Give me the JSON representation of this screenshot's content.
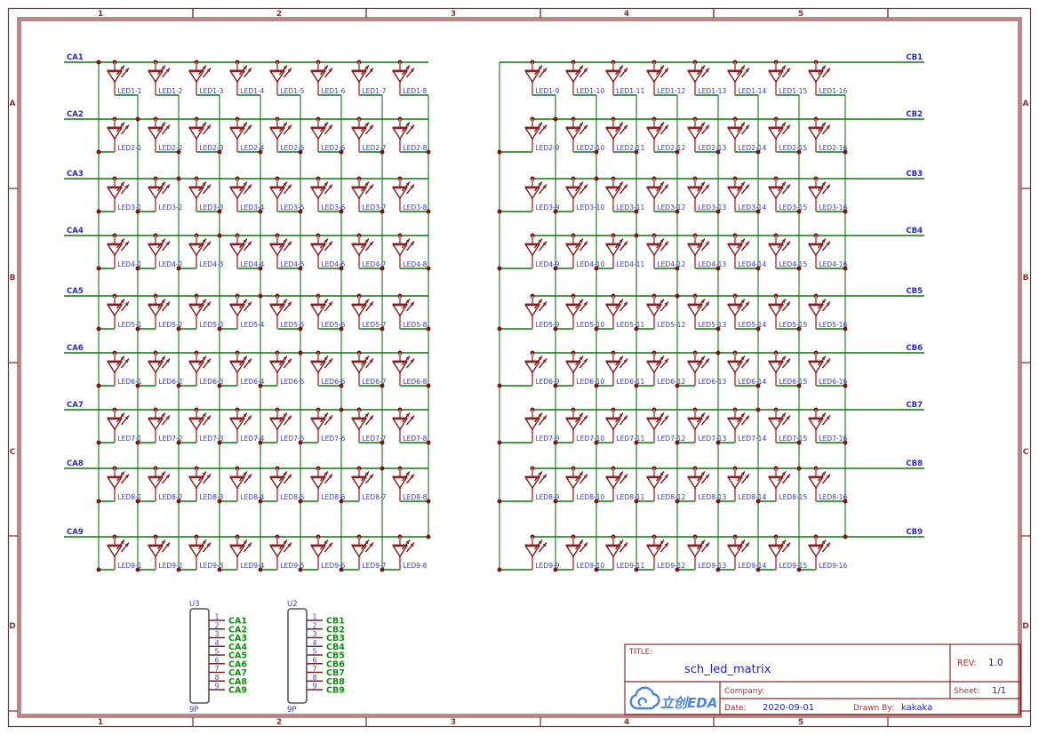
{
  "sheet": {
    "border": {
      "columns": [
        "1",
        "2",
        "3",
        "4",
        "5"
      ],
      "rows": [
        "A",
        "B",
        "C",
        "D"
      ]
    }
  },
  "matrix": {
    "left_row_nets": [
      "CA1",
      "CA2",
      "CA3",
      "CA4",
      "CA5",
      "CA6",
      "CA7",
      "CA8",
      "CA9"
    ],
    "right_row_nets": [
      "CB1",
      "CB2",
      "CB3",
      "CB4",
      "CB5",
      "CB6",
      "CB7",
      "CB8",
      "CB9"
    ],
    "led_labels": [
      [
        "LED1-1",
        "LED1-2",
        "LED1-3",
        "LED1-4",
        "LED1-5",
        "LED1-6",
        "LED1-7",
        "LED1-8",
        "LED1-9",
        "LED1-10",
        "LED1-11",
        "LED1-12",
        "LED1-13",
        "LED1-14",
        "LED1-15",
        "LED1-16"
      ],
      [
        "LED2-1",
        "LED2-2",
        "LED2-3",
        "LED2-4",
        "LED2-5",
        "LED2-6",
        "LED2-7",
        "LED2-8",
        "LED2-9",
        "LED2-10",
        "LED2-11",
        "LED2-12",
        "LED2-13",
        "LED2-14",
        "LED2-15",
        "LED2-16"
      ],
      [
        "LED3-1",
        "LED3-2",
        "LED3-3",
        "LED3-4",
        "LED3-5",
        "LED3-6",
        "LED3-7",
        "LED3-8",
        "LED3-9",
        "LED3-10",
        "LED3-11",
        "LED3-12",
        "LED3-13",
        "LED3-14",
        "LED3-15",
        "LED3-16"
      ],
      [
        "LED4-1",
        "LED4-2",
        "LED4-3",
        "LED4-4",
        "LED4-5",
        "LED4-6",
        "LED4-7",
        "LED4-8",
        "LED4-9",
        "LED4-10",
        "LED4-11",
        "LED4-12",
        "LED4-13",
        "LED4-14",
        "LED4-15",
        "LED4-16"
      ],
      [
        "LED5-1",
        "LED5-2",
        "LED5-3",
        "LED5-4",
        "LED5-5",
        "LED5-6",
        "LED5-7",
        "LED5-8",
        "LED5-9",
        "LED5-10",
        "LED5-11",
        "LED5-12",
        "LED5-13",
        "LED5-14",
        "LED5-15",
        "LED5-16"
      ],
      [
        "LED6-1",
        "LED6-2",
        "LED6-3",
        "LED6-4",
        "LED6-5",
        "LED6-6",
        "LED6-7",
        "LED6-8",
        "LED6-9",
        "LED6-10",
        "LED6-11",
        "LED6-12",
        "LED6-13",
        "LED6-14",
        "LED6-15",
        "LED6-16"
      ],
      [
        "LED7-1",
        "LED7-2",
        "LED7-3",
        "LED7-4",
        "LED7-5",
        "LED7-6",
        "LED7-7",
        "LED7-8",
        "LED7-9",
        "LED7-10",
        "LED7-11",
        "LED7-12",
        "LED7-13",
        "LED7-14",
        "LED7-15",
        "LED7-16"
      ],
      [
        "LED8-1",
        "LED8-2",
        "LED8-3",
        "LED8-4",
        "LED8-5",
        "LED8-6",
        "LED8-7",
        "LED8-8",
        "LED8-9",
        "LED8-10",
        "LED8-11",
        "LED8-12",
        "LED8-13",
        "LED8-14",
        "LED8-15",
        "LED8-16"
      ],
      [
        "LED9-1",
        "LED9-2",
        "LED9-3",
        "LED9-4",
        "LED9-5",
        "LED9-6",
        "LED9-7",
        "LED9-8",
        "LED9-9",
        "LED9-10",
        "LED9-11",
        "LED9-12",
        "LED9-13",
        "LED9-14",
        "LED9-15",
        "LED9-16"
      ]
    ]
  },
  "connectors": [
    {
      "ref": "U3",
      "type_label": "9P",
      "pins": [
        {
          "num": "1",
          "net": "CA1"
        },
        {
          "num": "2",
          "net": "CA2"
        },
        {
          "num": "3",
          "net": "CA3"
        },
        {
          "num": "4",
          "net": "CA4"
        },
        {
          "num": "5",
          "net": "CA5"
        },
        {
          "num": "6",
          "net": "CA6"
        },
        {
          "num": "7",
          "net": "CA7"
        },
        {
          "num": "8",
          "net": "CA8"
        },
        {
          "num": "9",
          "net": "CA9"
        }
      ]
    },
    {
      "ref": "U2",
      "type_label": "9P",
      "pins": [
        {
          "num": "1",
          "net": "CB1"
        },
        {
          "num": "2",
          "net": "CB2"
        },
        {
          "num": "3",
          "net": "CB3"
        },
        {
          "num": "4",
          "net": "CB4"
        },
        {
          "num": "5",
          "net": "CB5"
        },
        {
          "num": "6",
          "net": "CB6"
        },
        {
          "num": "7",
          "net": "CB7"
        },
        {
          "num": "8",
          "net": "CB8"
        },
        {
          "num": "9",
          "net": "CB9"
        }
      ]
    }
  ],
  "title_block": {
    "title_label": "TITLE:",
    "title": "sch_led_matrix",
    "rev_label": "REV:",
    "rev": "1.0",
    "company_label": "Company:",
    "company": "",
    "sheet_label": "Sheet:",
    "sheet": "1/1",
    "date_label": "Date:",
    "date": "2020-09-01",
    "drawn_by_label": "Drawn By:",
    "drawn_by": "kakaka",
    "logo_text": "立创EDA"
  },
  "colors": {
    "wire": "#0b7c0b",
    "bus_vertical": "#82b182",
    "junction": "#7c1616",
    "symbol": "#8b2323",
    "symbol_pin": "#bb7878",
    "designator": "#3a3acc",
    "net_label_blue": "#2a2ac4",
    "net_label_green": "#0f8f0f",
    "pin_number": "#4646cc",
    "frame": "#7e2a2a",
    "frame_light": "#c98080",
    "frame_text": "#8c3232",
    "title_label": "#a03333",
    "title_value": "#2222cc",
    "logo": "#4e86d6",
    "connector_body": "#555555"
  }
}
